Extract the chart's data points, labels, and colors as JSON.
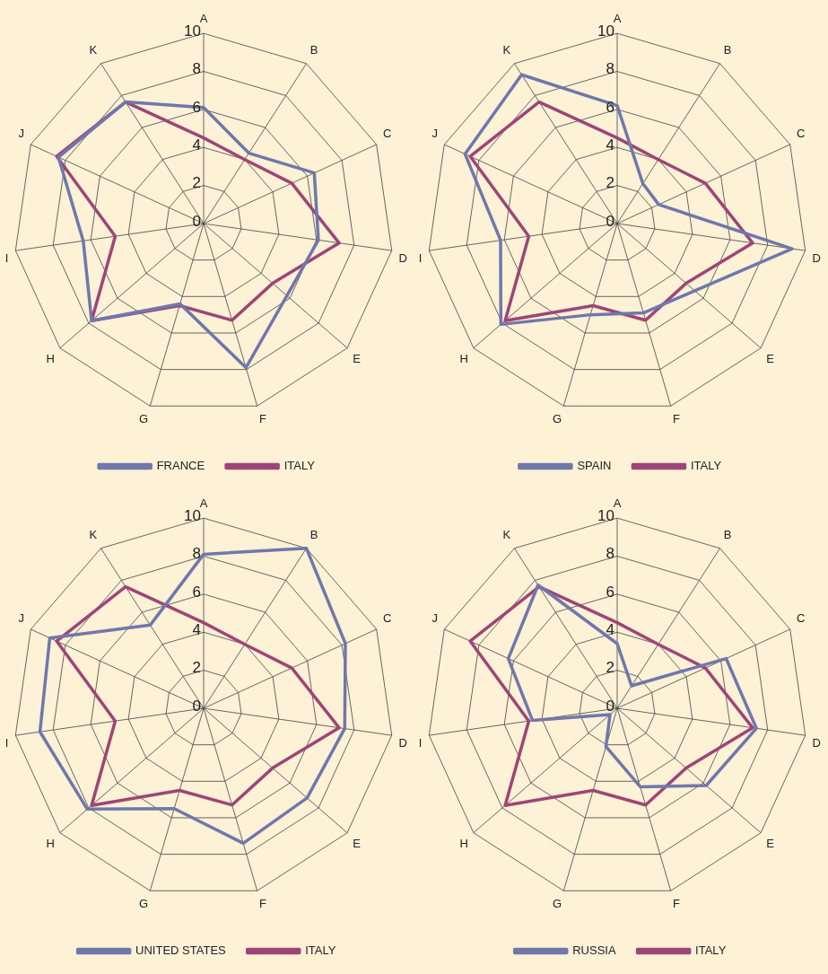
{
  "chart_data": [
    {
      "type": "radar",
      "categories": [
        "A",
        "B",
        "C",
        "D",
        "E",
        "F",
        "G",
        "H",
        "I",
        "J",
        "K"
      ],
      "ylim": [
        0,
        10
      ],
      "yticks": [
        0,
        2,
        4,
        6,
        8,
        10
      ],
      "grid": true,
      "legend": "bottom",
      "marker": "none",
      "series": [
        {
          "name": "FRANCE",
          "color": "#6f78ab",
          "values": [
            6.1,
            4.4,
            6.4,
            6.1,
            5.8,
            7.9,
            4.4,
            7.8,
            6.4,
            8.4,
            7.6
          ]
        },
        {
          "name": "ITALY",
          "color": "#9e4577",
          "values": [
            4.5,
            4,
            5.1,
            7.2,
            4.8,
            5.3,
            4.5,
            7.8,
            4.7,
            8.5,
            7.6
          ]
        }
      ]
    },
    {
      "type": "radar",
      "categories": [
        "A",
        "B",
        "C",
        "D",
        "E",
        "F",
        "G",
        "H",
        "I",
        "J",
        "K"
      ],
      "ylim": [
        0,
        10
      ],
      "yticks": [
        0,
        2,
        4,
        6,
        8,
        10
      ],
      "grid": true,
      "legend": "bottom",
      "marker": "none",
      "series": [
        {
          "name": "SPAIN",
          "color": "#6f78ab",
          "values": [
            6.2,
            2.5,
            2.4,
            9.3,
            5.4,
            4.9,
            5,
            8.1,
            6.2,
            8.8,
            9.3
          ]
        },
        {
          "name": "ITALY",
          "color": "#9e4577",
          "values": [
            4.5,
            4,
            5.1,
            7.2,
            4.8,
            5.3,
            4.5,
            7.8,
            4.7,
            8.5,
            7.6
          ]
        }
      ]
    },
    {
      "type": "radar",
      "categories": [
        "A",
        "B",
        "C",
        "D",
        "E",
        "F",
        "G",
        "H",
        "I",
        "J",
        "K"
      ],
      "ylim": [
        0,
        10
      ],
      "yticks": [
        0,
        2,
        4,
        6,
        8,
        10
      ],
      "grid": true,
      "legend": "bottom",
      "marker": "none",
      "series": [
        {
          "name": "UNITED STATES",
          "color": "#6f78ab",
          "values": [
            8.1,
            10,
            8.2,
            7.5,
            7.2,
            7.4,
            5.5,
            8.1,
            8.7,
            8.9,
            5.2
          ]
        },
        {
          "name": "ITALY",
          "color": "#9e4577",
          "values": [
            4.5,
            4,
            5.1,
            7.2,
            4.8,
            5.3,
            4.5,
            7.8,
            4.7,
            8.5,
            7.6
          ]
        }
      ]
    },
    {
      "type": "radar",
      "categories": [
        "A",
        "B",
        "C",
        "D",
        "E",
        "F",
        "G",
        "H",
        "I",
        "J",
        "K"
      ],
      "ylim": [
        0,
        10
      ],
      "yticks": [
        0,
        2,
        4,
        6,
        8,
        10
      ],
      "grid": true,
      "legend": "bottom",
      "marker": "none",
      "series": [
        {
          "name": "RUSSIA",
          "color": "#6f78ab",
          "values": [
            3.4,
            1.4,
            6.3,
            7.4,
            6.2,
            4.3,
            2.1,
            0.5,
            4.5,
            6.3,
            7.7
          ]
        },
        {
          "name": "ITALY",
          "color": "#9e4577",
          "values": [
            4.5,
            4,
            5.1,
            7.2,
            4.8,
            5.3,
            4.5,
            7.8,
            4.7,
            8.5,
            7.6
          ]
        }
      ]
    }
  ]
}
